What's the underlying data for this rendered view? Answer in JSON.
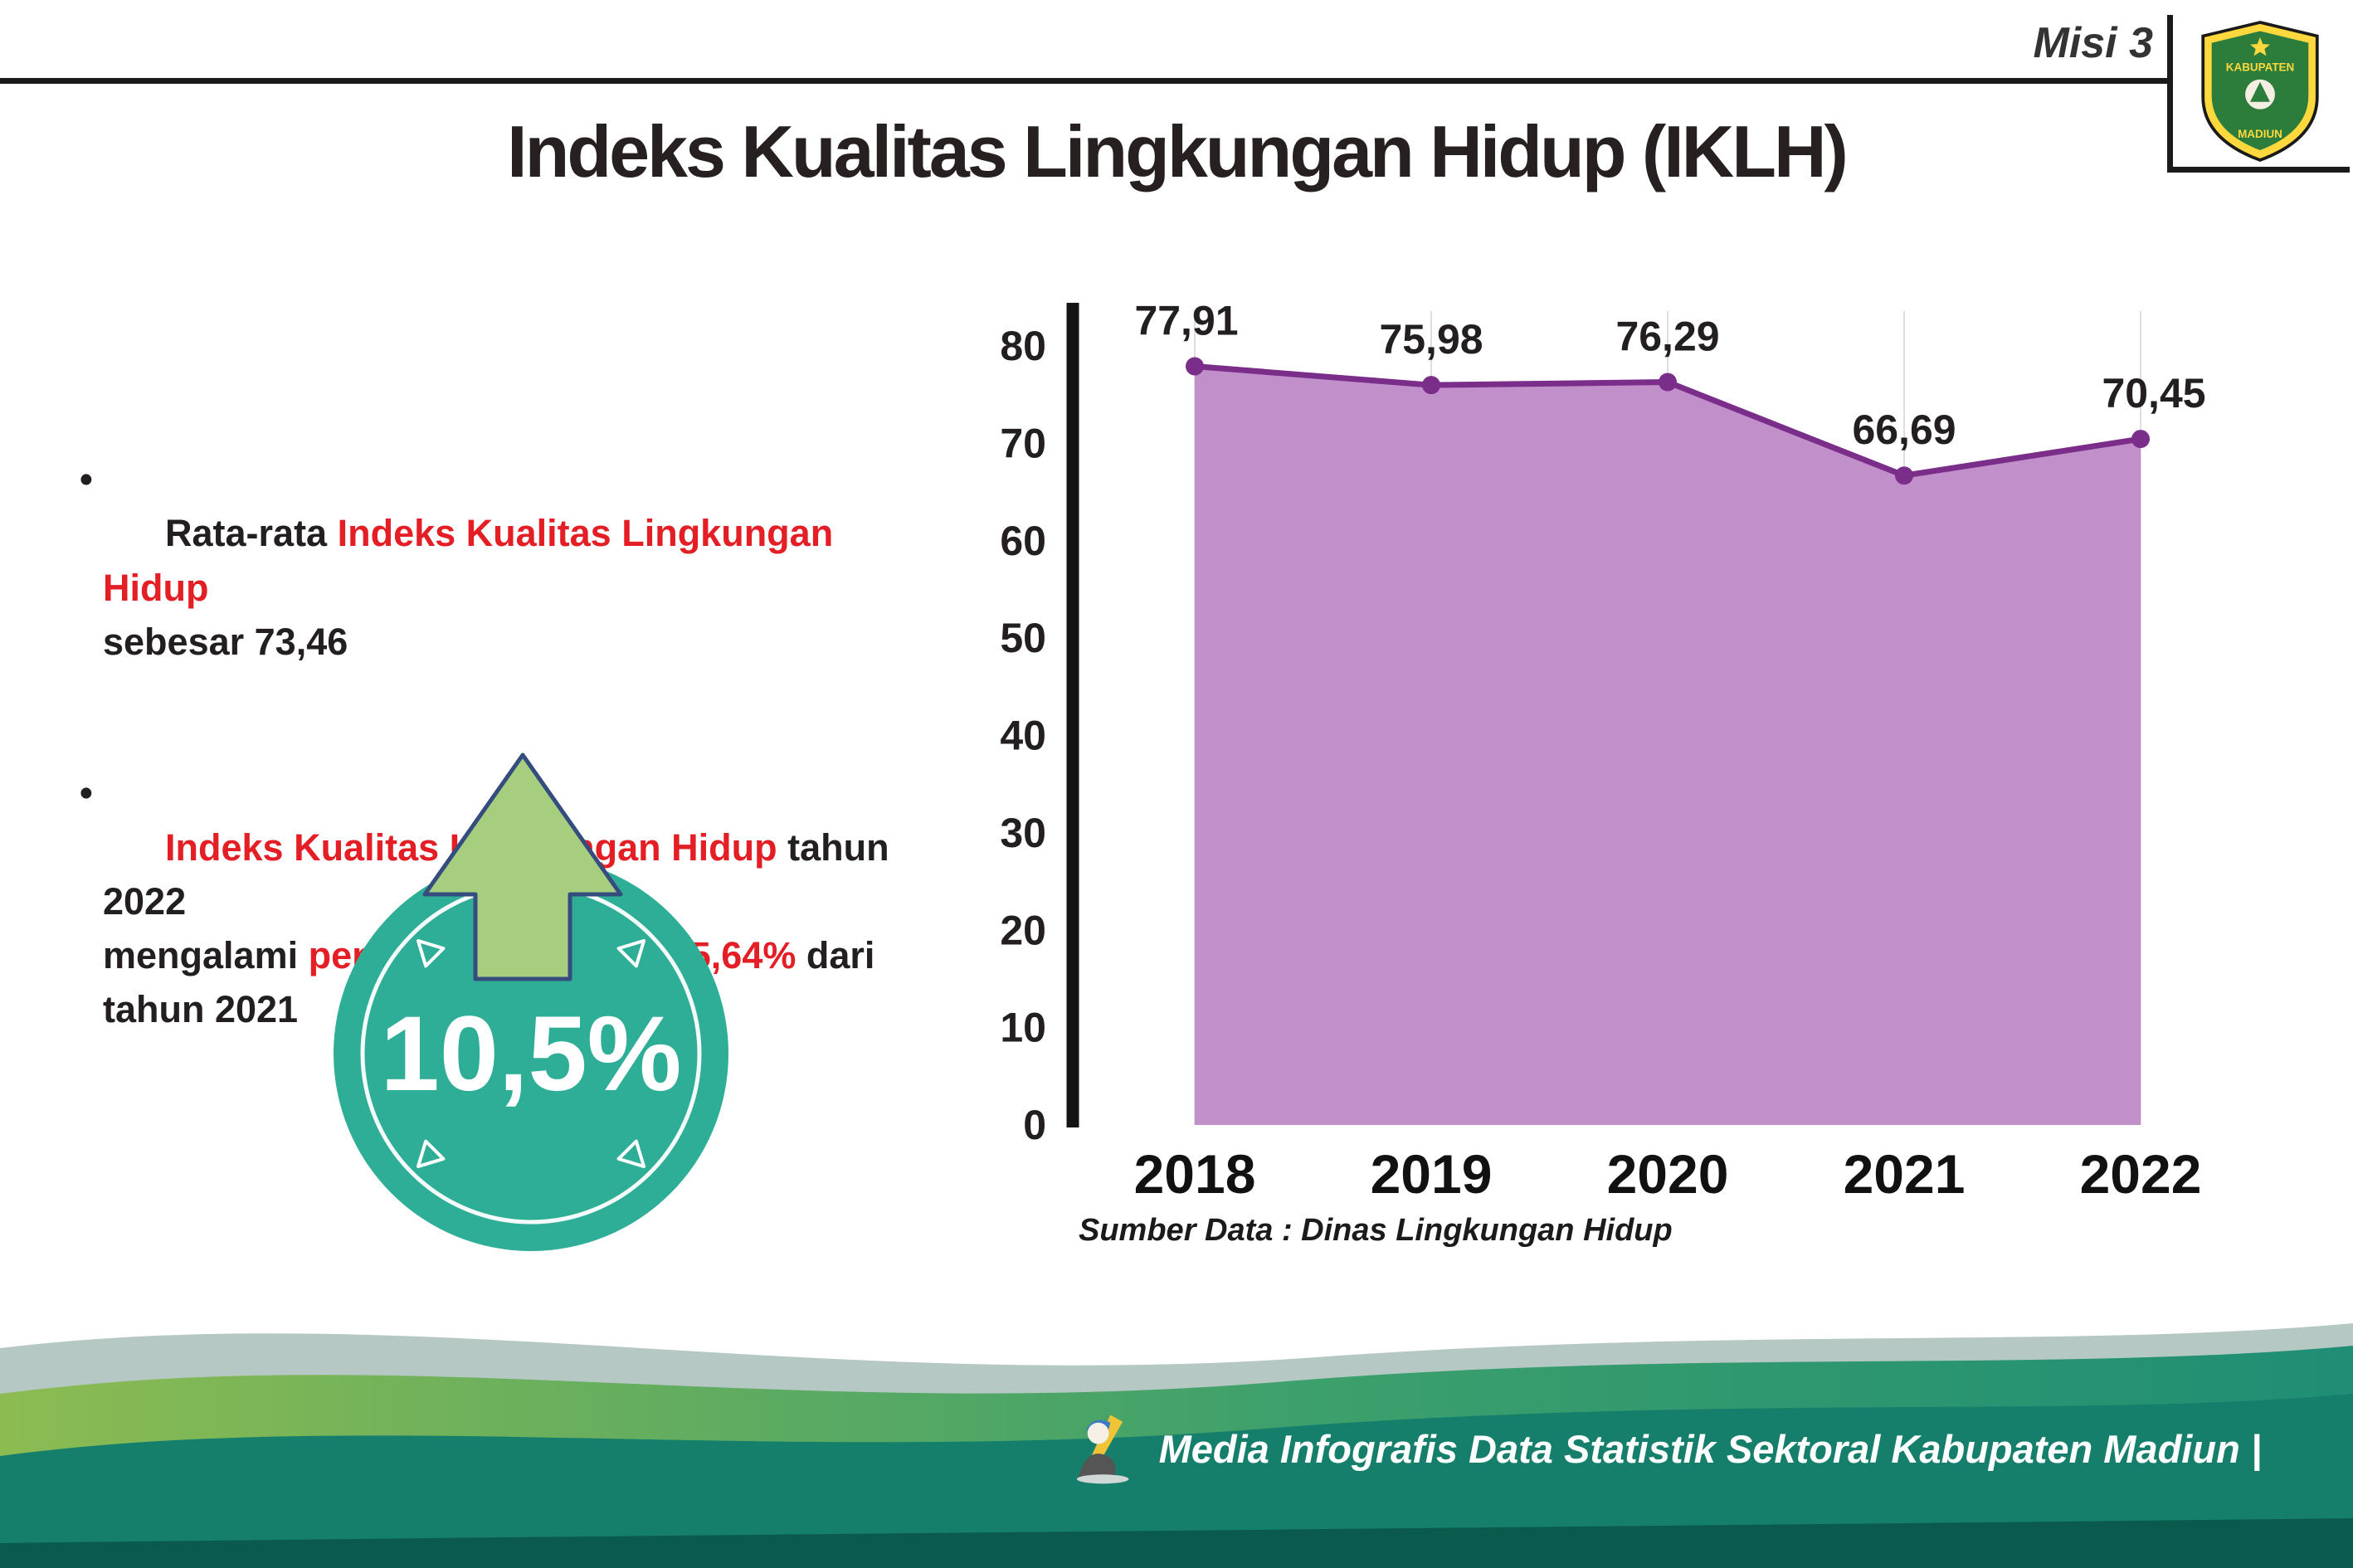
{
  "colors": {
    "red": "#e31e25",
    "dark_text": "#231f20",
    "teal_badge": "#2fae97",
    "arrow_green": "#a6ce7e",
    "area_fill": "#c18fca",
    "line_purple": "#7b2d8a",
    "axis_black": "#141414",
    "grid_gray": "#dedede"
  },
  "header": {
    "misi": "Misi 3",
    "title": "Indeks Kualitas Lingkungan Hidup (IKLH)",
    "logo_text_top": "KABUPATEN",
    "logo_text_bottom": "MADIUN"
  },
  "bullet_char": "•",
  "bullets": [
    {
      "segments": [
        {
          "t": "Rata-rata "
        },
        {
          "t": "Indeks Kualitas Lingkungan Hidup",
          "red": true
        },
        {
          "t": "\nsebesar 73,46"
        }
      ]
    },
    {
      "segments": [
        {
          "t": "Indeks Kualitas Lingkungan Hidup",
          "red": true
        },
        {
          "t": " tahun 2022\nmengalami "
        },
        {
          "t": "peningkatan",
          "red": true
        },
        {
          "t": " sebesar "
        },
        {
          "t": "5,64%",
          "red": true
        },
        {
          "t": " dari\ntahun 2021"
        }
      ]
    }
  ],
  "badge": {
    "value": "10,5%"
  },
  "chart_data": {
    "type": "area",
    "title": "",
    "categories": [
      "2018",
      "2019",
      "2020",
      "2021",
      "2022"
    ],
    "values": [
      77.91,
      75.98,
      76.29,
      66.69,
      70.45
    ],
    "point_labels": [
      "77,91",
      "75,98",
      "76,29",
      "66,69",
      "70,45"
    ],
    "xlabel": "",
    "ylabel": "",
    "ylim": [
      0,
      80
    ],
    "yticks": [
      0,
      10,
      20,
      30,
      40,
      50,
      60,
      70,
      80
    ],
    "grid": "vertical",
    "legend": "none",
    "source": "Sumber Data : Dinas Lingkungan Hidup"
  },
  "footer": {
    "credit": "Media Infografis Data Statistik Sektoral Kabupaten Madiun |"
  }
}
